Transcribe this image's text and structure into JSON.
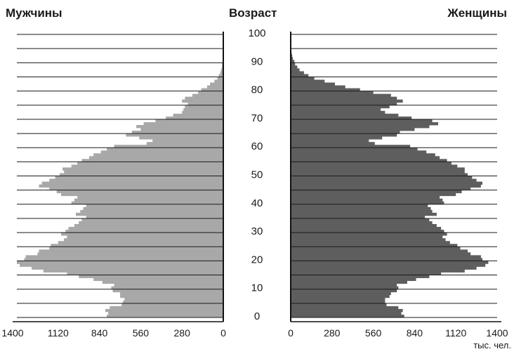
{
  "chart_data": {
    "type": "bar",
    "orientation": "horizontal-population-pyramid",
    "title": "",
    "left_label": "Мужчины",
    "center_label": "Возраст",
    "right_label": "Женщины",
    "unit_label": "тыс. чел.",
    "age_ticks": [
      "0",
      "10",
      "20",
      "30",
      "40",
      "50",
      "60",
      "70",
      "80",
      "90",
      "100"
    ],
    "male_axis_ticks": [
      "1400",
      "1120",
      "840",
      "560",
      "280",
      "0"
    ],
    "female_axis_ticks": [
      "0",
      "280",
      "560",
      "840",
      "1120",
      "1400"
    ],
    "xlim": [
      0,
      1400
    ],
    "ylim": [
      0,
      100
    ],
    "grid": true,
    "colors": {
      "male": "#a8a8a8",
      "female": "#5e5e5e",
      "grid": "#1a1a1a"
    },
    "ages": [
      0,
      1,
      2,
      3,
      4,
      5,
      6,
      7,
      8,
      9,
      10,
      11,
      12,
      13,
      14,
      15,
      16,
      17,
      18,
      19,
      20,
      21,
      22,
      23,
      24,
      25,
      26,
      27,
      28,
      29,
      30,
      31,
      32,
      33,
      34,
      35,
      36,
      37,
      38,
      39,
      40,
      41,
      42,
      43,
      44,
      45,
      46,
      47,
      48,
      49,
      50,
      51,
      52,
      53,
      54,
      55,
      56,
      57,
      58,
      59,
      60,
      61,
      62,
      63,
      64,
      65,
      66,
      67,
      68,
      69,
      70,
      71,
      72,
      73,
      74,
      75,
      76,
      77,
      78,
      79,
      80,
      81,
      82,
      83,
      84,
      85,
      86,
      87,
      88,
      89,
      90,
      91,
      92,
      93,
      94,
      95,
      96,
      97,
      98,
      99,
      100
    ],
    "series": [
      {
        "name": "Мужчины",
        "values": [
          790,
          780,
          800,
          770,
          690,
          680,
          670,
          700,
          700,
          750,
          760,
          740,
          820,
          880,
          980,
          1060,
          1220,
          1300,
          1380,
          1400,
          1350,
          1340,
          1260,
          1250,
          1180,
          1170,
          1120,
          1080,
          1060,
          1100,
          1070,
          1050,
          1010,
          980,
          960,
          930,
          1000,
          970,
          950,
          930,
          1030,
          1010,
          990,
          1100,
          1130,
          1180,
          1250,
          1230,
          1180,
          1140,
          1110,
          1080,
          1090,
          1030,
          990,
          960,
          910,
          880,
          830,
          790,
          740,
          520,
          480,
          570,
          660,
          620,
          560,
          590,
          540,
          460,
          390,
          340,
          280,
          270,
          260,
          240,
          280,
          260,
          210,
          170,
          150,
          110,
          90,
          60,
          40,
          30,
          20,
          15,
          10,
          8,
          5,
          4,
          3,
          2,
          1,
          1,
          0,
          0,
          0,
          0,
          0
        ],
        "label": "Мужчины"
      },
      {
        "name": "Женщины",
        "values": [
          770,
          750,
          760,
          730,
          650,
          640,
          640,
          670,
          680,
          720,
          730,
          720,
          790,
          850,
          940,
          1020,
          1180,
          1260,
          1320,
          1340,
          1300,
          1290,
          1220,
          1200,
          1150,
          1130,
          1080,
          1050,
          1030,
          1060,
          1040,
          1020,
          990,
          960,
          940,
          910,
          990,
          960,
          950,
          930,
          1040,
          1030,
          1010,
          1120,
          1160,
          1220,
          1290,
          1300,
          1260,
          1230,
          1200,
          1180,
          1180,
          1130,
          1090,
          1060,
          1010,
          980,
          920,
          860,
          810,
          570,
          530,
          620,
          720,
          740,
          840,
          940,
          1000,
          960,
          820,
          730,
          640,
          610,
          670,
          720,
          760,
          720,
          680,
          560,
          470,
          370,
          300,
          230,
          160,
          120,
          90,
          60,
          45,
          30,
          25,
          15,
          10,
          6,
          4,
          2,
          1,
          1,
          0,
          0,
          0
        ]
      }
    ]
  }
}
